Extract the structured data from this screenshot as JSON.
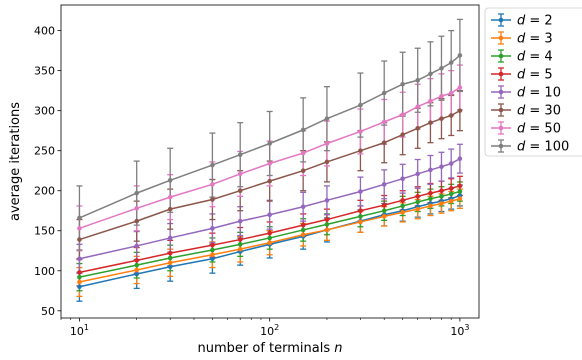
{
  "chart_data": {
    "type": "line",
    "xlabel": "number of terminals n",
    "ylabel": "average iterations",
    "x_scale": "log",
    "xlim": [
      8,
      1260
    ],
    "ylim": [
      41,
      432
    ],
    "x_ticks": [
      10,
      100,
      1000
    ],
    "x_tick_labels": [
      "10",
      "2",
      "3"
    ],
    "x_tick_bases": [
      "10",
      "10",
      "10"
    ],
    "y_ticks": [
      50,
      100,
      150,
      200,
      250,
      300,
      350,
      400
    ],
    "y_tick_labels": [
      "50",
      "100",
      "150",
      "200",
      "250",
      "300",
      "350",
      "400"
    ],
    "grid": false,
    "legend_placement": "outside-right",
    "x": [
      10,
      20,
      30,
      50,
      70,
      100,
      150,
      200,
      300,
      400,
      500,
      600,
      700,
      800,
      900,
      1000
    ],
    "series": [
      {
        "name": "d = 2",
        "color": "#1f77b4",
        "values": [
          80,
          96,
          105,
          115,
          124,
          133,
          143,
          151,
          162,
          170,
          175,
          180,
          184,
          187,
          190,
          194
        ],
        "errors": [
          18,
          18,
          18,
          18,
          17,
          17,
          16,
          15,
          14,
          14,
          13,
          13,
          13,
          13,
          13,
          13
        ]
      },
      {
        "name": "d = 3",
        "color": "#ff7f0e",
        "values": [
          86,
          101,
          110,
          120,
          127,
          135,
          145,
          151,
          161,
          168,
          173,
          177,
          181,
          184,
          187,
          190
        ],
        "errors": [
          18,
          17,
          17,
          16,
          16,
          15,
          14,
          13,
          13,
          12,
          12,
          12,
          12,
          12,
          12,
          12
        ]
      },
      {
        "name": "d = 4",
        "color": "#2ca02c",
        "values": [
          92,
          107,
          116,
          126,
          133,
          141,
          151,
          158,
          168,
          175,
          181,
          186,
          190,
          193,
          196,
          199
        ],
        "errors": [
          17,
          16,
          16,
          15,
          15,
          14,
          14,
          13,
          13,
          12,
          12,
          12,
          12,
          12,
          12,
          12
        ]
      },
      {
        "name": "d = 5",
        "color": "#d62728",
        "values": [
          98,
          113,
          122,
          132,
          139,
          147,
          157,
          164,
          175,
          182,
          188,
          193,
          197,
          200,
          203,
          206
        ],
        "errors": [
          17,
          16,
          16,
          15,
          15,
          14,
          14,
          13,
          13,
          12,
          12,
          12,
          12,
          12,
          12,
          12
        ]
      },
      {
        "name": "d = 10",
        "color": "#9467bd",
        "values": [
          115,
          131,
          141,
          153,
          162,
          170,
          180,
          188,
          199,
          208,
          215,
          221,
          226,
          230,
          234,
          240
        ],
        "errors": [
          18,
          18,
          18,
          18,
          18,
          18,
          18,
          18,
          18,
          18,
          18,
          18,
          18,
          18,
          18,
          18
        ]
      },
      {
        "name": "d = 30",
        "color": "#8c564b",
        "values": [
          139,
          162,
          177,
          189,
          200,
          212,
          225,
          236,
          250,
          260,
          270,
          278,
          285,
          290,
          294,
          300
        ],
        "errors": [
          25,
          25,
          25,
          25,
          25,
          25,
          25,
          25,
          25,
          25,
          25,
          25,
          25,
          25,
          25,
          25
        ]
      },
      {
        "name": "d = 50",
        "color": "#e377c2",
        "values": [
          153,
          178,
          192,
          208,
          221,
          234,
          247,
          259,
          274,
          286,
          295,
          305,
          312,
          318,
          322,
          329
        ],
        "errors": [
          28,
          28,
          28,
          28,
          28,
          28,
          28,
          28,
          28,
          28,
          28,
          28,
          28,
          28,
          28,
          28
        ]
      },
      {
        "name": "d = 100",
        "color": "#7f7f7f",
        "values": [
          166,
          197,
          213,
          232,
          245,
          259,
          276,
          290,
          307,
          322,
          333,
          338,
          346,
          353,
          360,
          369
        ],
        "errors": [
          40,
          40,
          40,
          40,
          40,
          40,
          40,
          40,
          40,
          40,
          40,
          40,
          40,
          40,
          40,
          45
        ]
      }
    ]
  }
}
